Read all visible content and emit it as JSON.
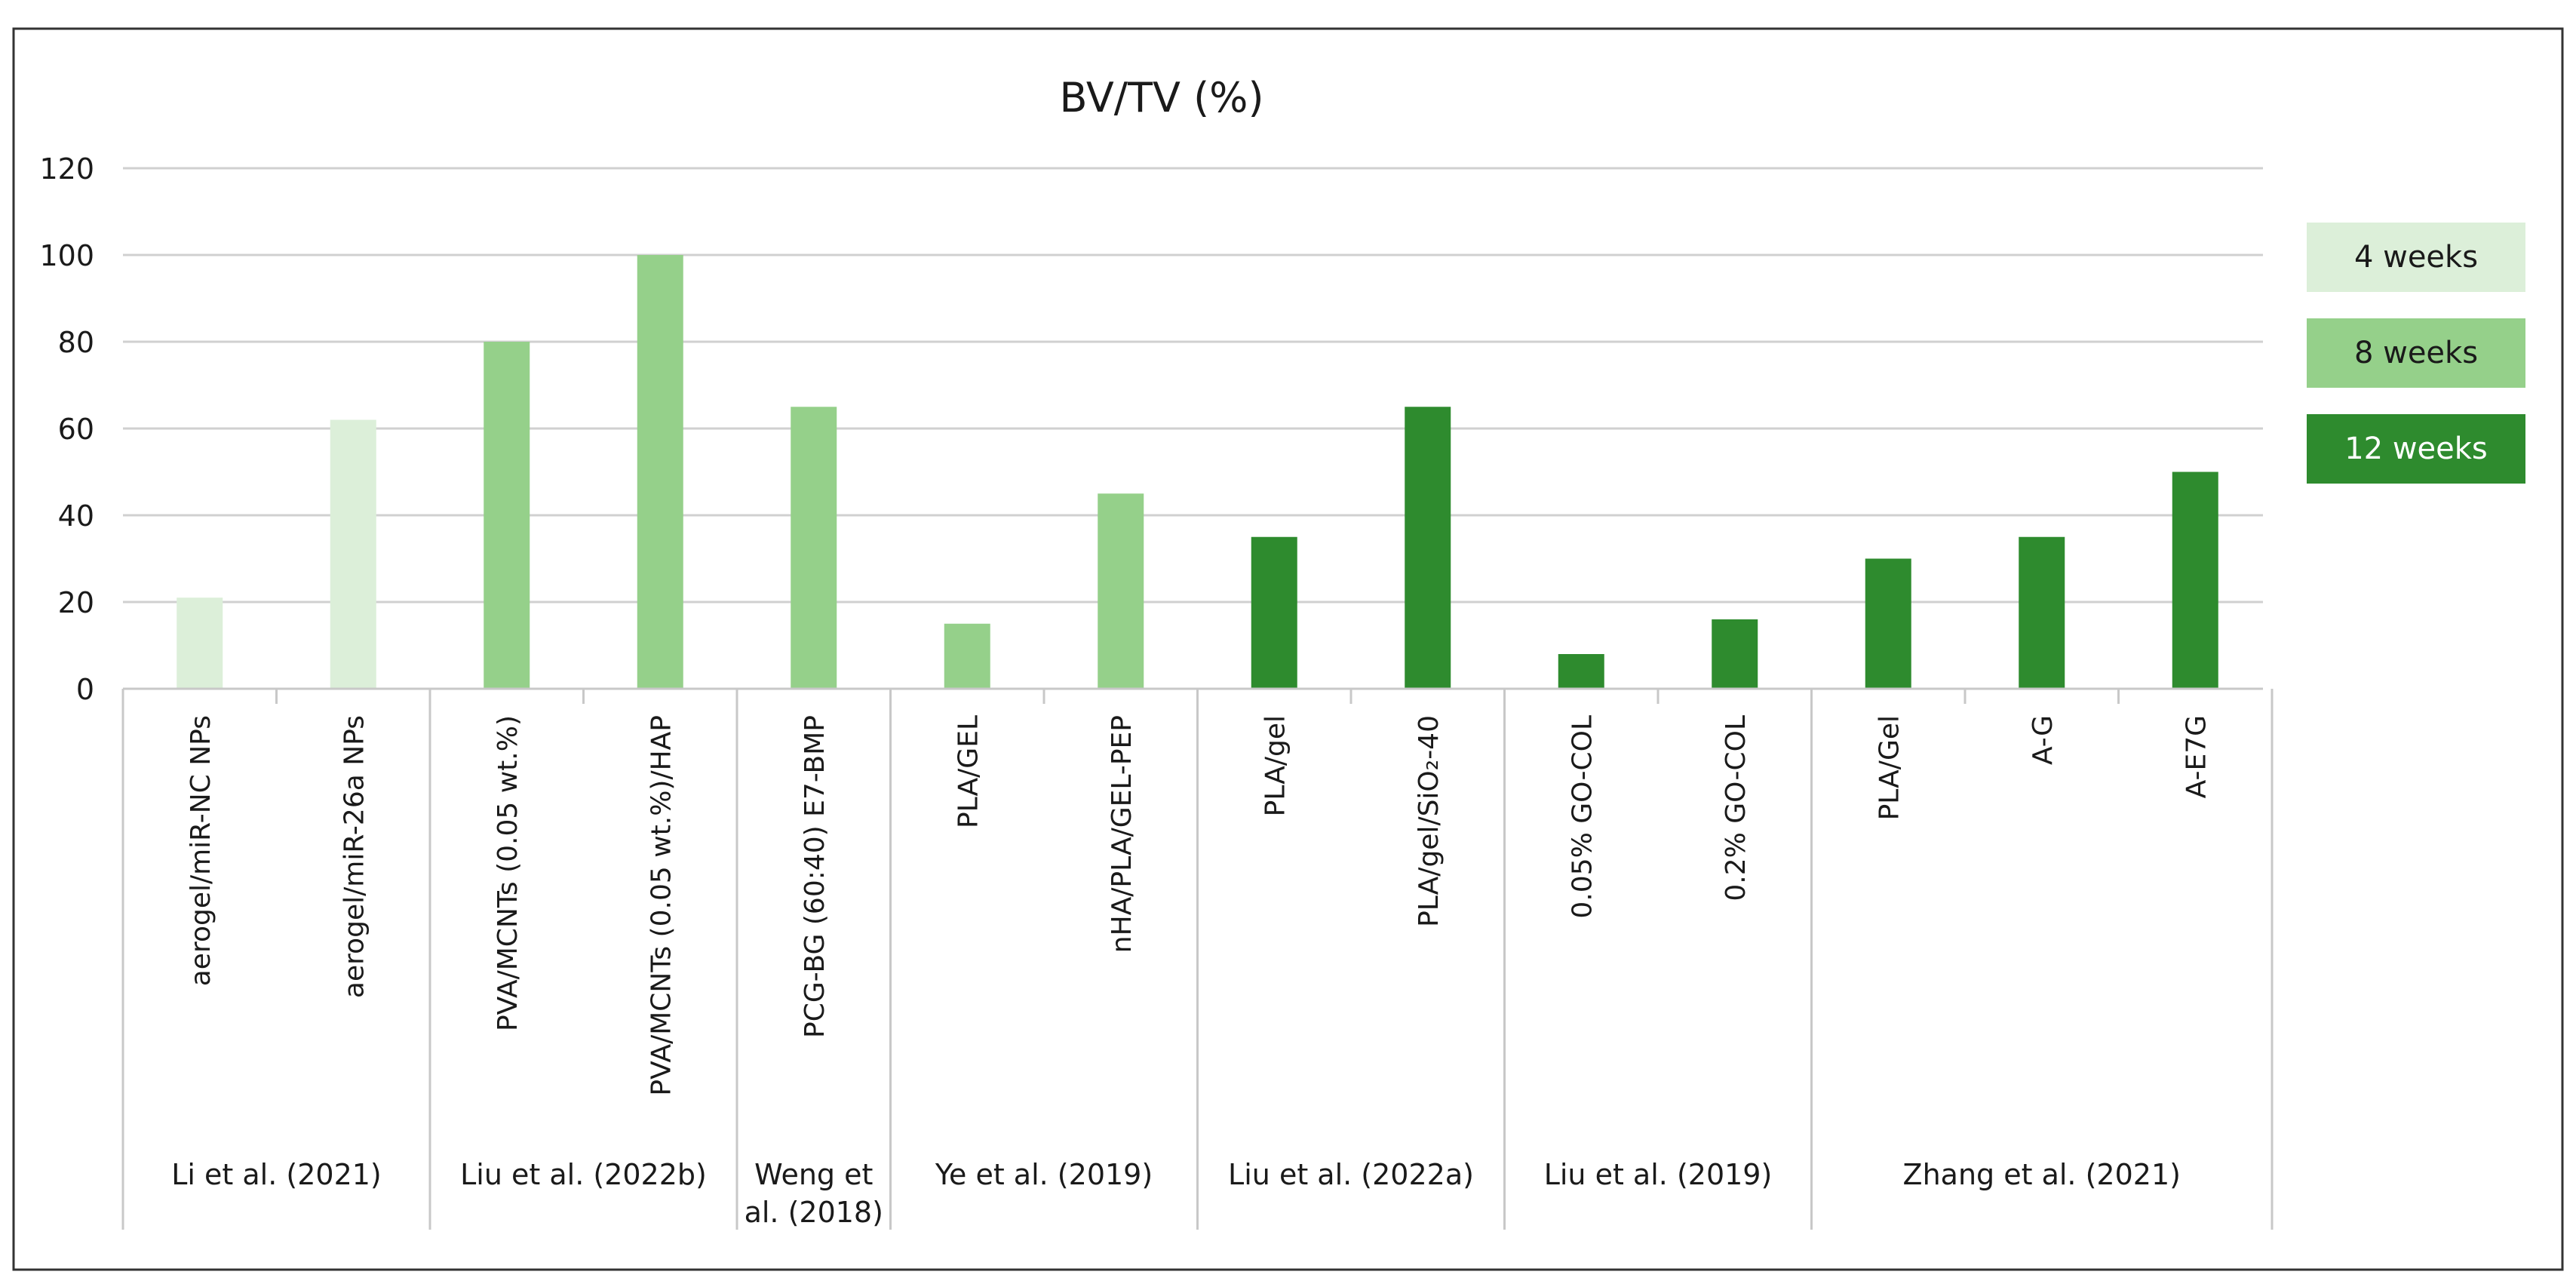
{
  "chart_data": {
    "type": "bar",
    "title": "BV/TV (%)",
    "xlabel": "",
    "ylabel": "",
    "ylim": [
      0,
      120
    ],
    "yticks": [
      0,
      20,
      40,
      60,
      80,
      100,
      120
    ],
    "grid": true,
    "legend_position": "right",
    "series_colors": {
      "4 weeks": "#dcefd9",
      "8 weeks": "#95d08a",
      "12 weeks": "#2e8b2e"
    },
    "legend": [
      {
        "label": "4 weeks",
        "series": "4 weeks",
        "text_color": "#1a1a1a"
      },
      {
        "label": "8 weeks",
        "series": "8 weeks",
        "text_color": "#1a1a1a"
      },
      {
        "label": "12 weeks",
        "series": "12 weeks",
        "text_color": "#ffffff"
      }
    ],
    "groups": [
      {
        "label": "Li et al. (2021)",
        "categories": [
          {
            "label": "aerogel/miR-NC NPs",
            "value": 21,
            "series": "4 weeks"
          },
          {
            "label": "aerogel/miR-26a NPs",
            "value": 62,
            "series": "4 weeks"
          }
        ]
      },
      {
        "label": "Liu et al. (2022b)",
        "categories": [
          {
            "label": "PVA/MCNTs (0.05 wt.%)",
            "value": 80,
            "series": "8 weeks"
          },
          {
            "label": "PVA/MCNTs (0.05 wt.%)/HAP",
            "value": 100,
            "series": "8 weeks"
          }
        ]
      },
      {
        "label": "Weng et al. (2018)",
        "label_lines": [
          "Weng et",
          "al. (2018)"
        ],
        "categories": [
          {
            "label": "PCG-BG (60:40) E7-BMP",
            "value": 65,
            "series": "8 weeks"
          }
        ]
      },
      {
        "label": "Ye et al. (2019)",
        "categories": [
          {
            "label": "PLA/GEL",
            "value": 15,
            "series": "8 weeks"
          },
          {
            "label": "nHA/PLA/GEL-PEP",
            "value": 45,
            "series": "8 weeks"
          }
        ]
      },
      {
        "label": "Liu et al. (2022a)",
        "categories": [
          {
            "label": "PLA/gel",
            "value": 35,
            "series": "12 weeks"
          },
          {
            "label": "PLA/gel/SiO₂-40",
            "value": 65,
            "series": "12 weeks"
          }
        ]
      },
      {
        "label": "Liu et al. (2019)",
        "categories": [
          {
            "label": "0.05% GO-COL",
            "value": 8,
            "series": "12 weeks"
          },
          {
            "label": "0.2% GO-COL",
            "value": 16,
            "series": "12 weeks"
          }
        ]
      },
      {
        "label": "Zhang et al. (2021)",
        "categories": [
          {
            "label": "PLA/Gel",
            "value": 30,
            "series": "12 weeks"
          },
          {
            "label": "A-G",
            "value": 35,
            "series": "12 weeks"
          },
          {
            "label": "A-E7G",
            "value": 50,
            "series": "12 weeks"
          }
        ]
      }
    ]
  }
}
